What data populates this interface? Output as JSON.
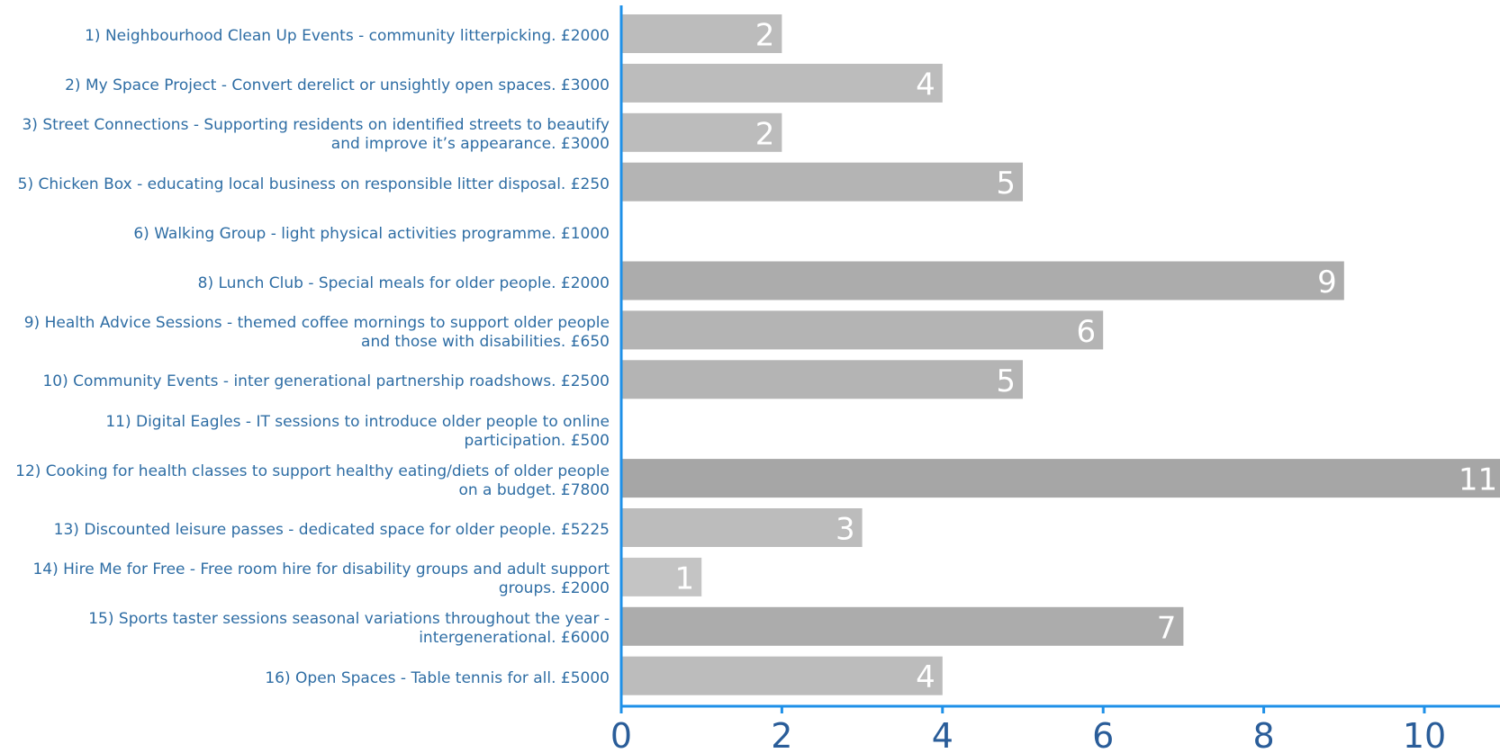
{
  "chart_data": {
    "type": "bar",
    "orientation": "horizontal",
    "categories": [
      [
        "1) Neighbourhood Clean Up Events - community litterpicking. £2000"
      ],
      [
        "2) My Space Project - Convert derelict or unsightly open spaces. £3000"
      ],
      [
        "3) Street Connections - Supporting residents on identified streets to beautify",
        "and improve it’s appearance. £3000"
      ],
      [
        "5) Chicken Box - educating local business on responsible litter disposal. £250"
      ],
      [
        "6) Walking Group - light physical activities programme. £1000"
      ],
      [
        "8) Lunch Club - Special meals for older people. £2000"
      ],
      [
        "9) Health Advice Sessions - themed coffee mornings to support older people",
        "and those with disabilities. £650"
      ],
      [
        "10) Community Events - inter generational partnership roadshows. £2500"
      ],
      [
        "11) Digital Eagles - IT sessions to introduce older people to online",
        "participation. £500"
      ],
      [
        "12) Cooking for health classes to support healthy eating/diets of older people",
        "on a budget. £7800"
      ],
      [
        "13) Discounted leisure passes - dedicated space for older people. £5225"
      ],
      [
        "14) Hire Me for Free - Free room hire for disability groups and adult support",
        "groups. £2000"
      ],
      [
        "15) Sports taster sessions seasonal variations throughout the year -",
        "intergenerational. £6000"
      ],
      [
        "16) Open Spaces - Table tennis for all. £5000"
      ]
    ],
    "values": [
      2,
      4,
      2,
      5,
      0,
      9,
      6,
      5,
      0,
      11,
      3,
      1,
      7,
      4
    ],
    "value_labels": [
      "2",
      "4",
      "2",
      "5",
      "",
      "9",
      "6",
      "5",
      "",
      "11",
      "3",
      "1",
      "7",
      "4"
    ],
    "xticks": [
      "0",
      "2",
      "4",
      "6",
      "8",
      "10"
    ],
    "xlim": [
      0,
      11
    ],
    "grid": false,
    "legend": "none",
    "title": "",
    "xlabel": "",
    "ylabel": "",
    "colors": {
      "axis": "#1e90e8",
      "label_text": "#2e6da4",
      "tick_text": "#2a5d99",
      "value_text": "#ffffff",
      "bar_scale": [
        "#c4c4c4",
        "#bcbcbc",
        "#b4b4b4",
        "#acacac",
        "#a6a6a6"
      ]
    }
  }
}
